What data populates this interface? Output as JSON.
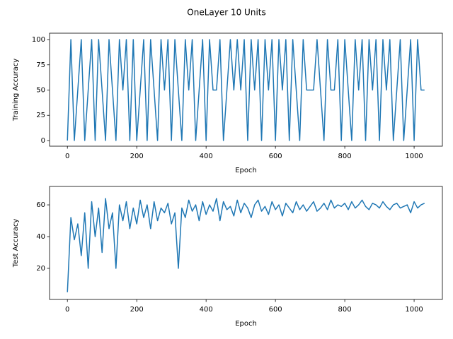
{
  "title": "OneLayer 10 Units",
  "chart_data": [
    {
      "type": "line",
      "xlabel": "Epoch",
      "ylabel": "Training Accuracy",
      "color": "#1f77b4",
      "x": [
        0,
        10,
        20,
        30,
        40,
        50,
        60,
        70,
        80,
        90,
        100,
        110,
        120,
        130,
        140,
        150,
        160,
        170,
        180,
        190,
        200,
        210,
        220,
        230,
        240,
        250,
        260,
        270,
        280,
        290,
        300,
        310,
        320,
        330,
        340,
        350,
        360,
        370,
        380,
        390,
        400,
        410,
        420,
        430,
        440,
        450,
        460,
        470,
        480,
        490,
        500,
        510,
        520,
        530,
        540,
        550,
        560,
        570,
        580,
        590,
        600,
        610,
        620,
        630,
        640,
        650,
        660,
        670,
        680,
        690,
        700,
        710,
        720,
        730,
        740,
        750,
        760,
        770,
        780,
        790,
        800,
        810,
        820,
        830,
        840,
        850,
        860,
        870,
        880,
        890,
        900,
        910,
        920,
        930,
        940,
        950,
        960,
        970,
        980,
        990,
        1000,
        1010,
        1020,
        1030
      ],
      "values": [
        0,
        100,
        0,
        50,
        100,
        0,
        50,
        100,
        0,
        100,
        50,
        0,
        100,
        50,
        0,
        100,
        50,
        100,
        0,
        100,
        0,
        50,
        100,
        0,
        100,
        50,
        0,
        100,
        50,
        100,
        0,
        100,
        50,
        0,
        100,
        50,
        100,
        0,
        50,
        100,
        0,
        100,
        50,
        50,
        100,
        0,
        50,
        100,
        50,
        100,
        50,
        100,
        0,
        100,
        50,
        100,
        0,
        100,
        50,
        100,
        0,
        100,
        50,
        100,
        0,
        100,
        50,
        0,
        100,
        50,
        50,
        50,
        100,
        50,
        0,
        100,
        50,
        50,
        100,
        0,
        100,
        50,
        0,
        100,
        50,
        100,
        0,
        100,
        50,
        100,
        0,
        100,
        50,
        100,
        0,
        50,
        100,
        0,
        50,
        100,
        0,
        100,
        50,
        50
      ],
      "xlim": [
        -51.5,
        1081.5
      ],
      "ylim": [
        -5.6,
        106.3
      ],
      "xticks": [
        0,
        200,
        400,
        600,
        800,
        1000
      ],
      "yticks": [
        0,
        25,
        50,
        75,
        100
      ]
    },
    {
      "type": "line",
      "xlabel": "Epoch",
      "ylabel": "Test Accuracy",
      "color": "#1f77b4",
      "x": [
        0,
        10,
        20,
        30,
        40,
        50,
        60,
        70,
        80,
        90,
        100,
        110,
        120,
        130,
        140,
        150,
        160,
        170,
        180,
        190,
        200,
        210,
        220,
        230,
        240,
        250,
        260,
        270,
        280,
        290,
        300,
        310,
        320,
        330,
        340,
        350,
        360,
        370,
        380,
        390,
        400,
        410,
        420,
        430,
        440,
        450,
        460,
        470,
        480,
        490,
        500,
        510,
        520,
        530,
        540,
        550,
        560,
        570,
        580,
        590,
        600,
        610,
        620,
        630,
        640,
        650,
        660,
        670,
        680,
        690,
        700,
        710,
        720,
        730,
        740,
        750,
        760,
        770,
        780,
        790,
        800,
        810,
        820,
        830,
        840,
        850,
        860,
        870,
        880,
        890,
        900,
        910,
        920,
        930,
        940,
        950,
        960,
        970,
        980,
        990,
        1000,
        1010,
        1020,
        1030
      ],
      "values": [
        5,
        52,
        38,
        48,
        28,
        55,
        20,
        62,
        40,
        58,
        30,
        64,
        45,
        55,
        20,
        60,
        50,
        62,
        45,
        58,
        48,
        63,
        52,
        60,
        45,
        62,
        50,
        58,
        55,
        61,
        48,
        55,
        20,
        58,
        52,
        63,
        56,
        60,
        50,
        62,
        54,
        60,
        56,
        64,
        50,
        62,
        57,
        59,
        53,
        63,
        55,
        61,
        58,
        52,
        60,
        63,
        56,
        59,
        54,
        62,
        57,
        60,
        53,
        61,
        58,
        55,
        62,
        57,
        60,
        56,
        59,
        62,
        56,
        58,
        61,
        57,
        63,
        58,
        60,
        59,
        61,
        57,
        62,
        58,
        60,
        63,
        59,
        57,
        61,
        60,
        58,
        62,
        59,
        57,
        60,
        61,
        58,
        59,
        60,
        55,
        62,
        58,
        60,
        61
      ],
      "xlim": [
        -51.5,
        1081.5
      ],
      "ylim": [
        0.4,
        71.6
      ],
      "xticks": [
        0,
        200,
        400,
        600,
        800,
        1000
      ],
      "yticks": [
        20,
        40,
        60
      ]
    }
  ]
}
